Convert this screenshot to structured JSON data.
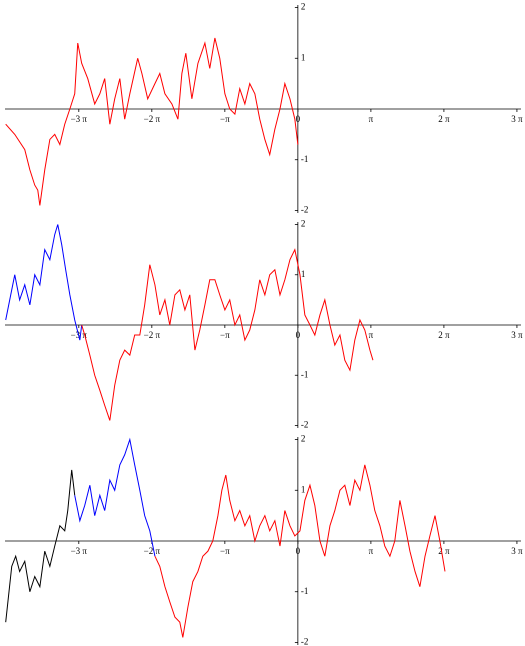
{
  "chart_data": [
    {
      "type": "line",
      "xlim": [
        -12.6,
        9.6
      ],
      "ylim": [
        -2.05,
        2.05
      ],
      "xticks": [
        {
          "value": -9.42478,
          "label": "−3 π"
        },
        {
          "value": -6.28319,
          "label": "−2 π"
        },
        {
          "value": -3.14159,
          "label": "−π"
        },
        0,
        {
          "value": 3.14159,
          "label": "π"
        },
        {
          "value": 6.28319,
          "label": "2 π"
        },
        {
          "value": 9.42478,
          "label": "3 π"
        }
      ],
      "yticks": [
        -2,
        -1,
        1,
        2
      ],
      "series": [
        {
          "color": "#ff0000",
          "x": [
            -12.57,
            -12.18,
            -11.75,
            -11.53,
            -11.32,
            -11.19,
            -11.1,
            -10.89,
            -10.67,
            -10.46,
            -10.24,
            -10.03,
            -9.81,
            -9.6,
            -9.47,
            -9.3,
            -9.04,
            -8.74,
            -8.52,
            -8.31,
            -8.09,
            -7.88,
            -7.66,
            -7.45,
            -7.23,
            -6.89,
            -6.71,
            -6.46,
            -6.15,
            -5.94,
            -5.72,
            -5.42,
            -5.16,
            -4.99,
            -4.82,
            -4.56,
            -4.3,
            -4.0,
            -3.79,
            -3.57,
            -3.36,
            -3.14,
            -2.93,
            -2.71,
            -2.5,
            -2.28,
            -2.07,
            -1.85,
            -1.64,
            -1.42,
            -1.21,
            -0.99,
            -0.77,
            -0.56,
            -0.34,
            -0.13,
            0
          ],
          "values": [
            -0.3,
            -0.5,
            -0.8,
            -1.2,
            -1.5,
            -1.6,
            -1.9,
            -1.2,
            -0.6,
            -0.5,
            -0.7,
            -0.3,
            0,
            0.3,
            1.3,
            0.9,
            0.6,
            0.1,
            0.3,
            0.6,
            -0.3,
            0.2,
            0.6,
            -0.2,
            0.3,
            1.0,
            0.7,
            0.2,
            0.5,
            0.7,
            0.3,
            0.1,
            -0.2,
            0.7,
            1.1,
            0.2,
            0.9,
            1.3,
            0.8,
            1.4,
            1.0,
            0.3,
            0.0,
            -0.1,
            0.4,
            0.1,
            0.5,
            0.3,
            -0.2,
            -0.6,
            -0.9,
            -0.4,
            0.0,
            0.5,
            0.2,
            -0.2,
            -0.7
          ]
        }
      ]
    },
    {
      "type": "line",
      "xlim": [
        -12.6,
        9.6
      ],
      "ylim": [
        -2.05,
        2.05
      ],
      "xticks": [
        {
          "value": -9.42478,
          "label": "−3 π"
        },
        {
          "value": -6.28319,
          "label": "−2 π"
        },
        {
          "value": -3.14159,
          "label": "−π"
        },
        0,
        {
          "value": 3.14159,
          "label": "π"
        },
        {
          "value": 6.28319,
          "label": "2 π"
        },
        {
          "value": 9.42478,
          "label": "3 π"
        }
      ],
      "yticks": [
        -2,
        -1,
        1,
        2
      ],
      "series": [
        {
          "color": "#0000ff",
          "x": [
            -12.57,
            -12.18,
            -11.97,
            -11.75,
            -11.53,
            -11.32,
            -11.1,
            -10.89,
            -10.67,
            -10.46,
            -10.33,
            -10.16,
            -9.99,
            -9.81,
            -9.6,
            -9.38,
            -9.3
          ],
          "values": [
            0.1,
            1.0,
            0.5,
            0.8,
            0.4,
            1.0,
            0.8,
            1.5,
            1.3,
            1.8,
            2.0,
            1.6,
            1.1,
            0.6,
            0.1,
            -0.3,
            0.0
          ]
        },
        {
          "color": "#ff0000",
          "x": [
            -9.3,
            -9.17,
            -8.95,
            -8.74,
            -8.52,
            -8.31,
            -8.09,
            -7.88,
            -7.66,
            -7.45,
            -7.23,
            -7.02,
            -6.8,
            -6.59,
            -6.37,
            -6.15,
            -5.94,
            -5.72,
            -5.51,
            -5.29,
            -5.08,
            -4.86,
            -4.65,
            -4.43,
            -4.22,
            -4.0,
            -3.79,
            -3.57,
            -3.36,
            -3.14,
            -2.93,
            -2.71,
            -2.5,
            -2.28,
            -2.07,
            -1.85,
            -1.64,
            -1.42,
            -1.21,
            -0.99,
            -0.77,
            -0.56,
            -0.34,
            -0.13,
            0.09,
            0.3,
            0.52,
            0.73,
            0.95,
            1.16,
            1.38,
            1.59,
            1.81,
            2.02,
            2.24,
            2.45,
            2.67,
            2.88,
            3.1,
            3.23
          ],
          "values": [
            0.0,
            -0.2,
            -0.6,
            -1.0,
            -1.3,
            -1.6,
            -1.9,
            -1.2,
            -0.7,
            -0.5,
            -0.6,
            -0.2,
            -0.2,
            0.4,
            1.2,
            0.8,
            0.2,
            0.5,
            0.0,
            0.6,
            0.7,
            0.3,
            0.6,
            -0.5,
            -0.1,
            0.4,
            0.9,
            0.9,
            0.6,
            0.3,
            0.5,
            0.0,
            0.2,
            -0.3,
            -0.1,
            0.3,
            0.9,
            0.6,
            1.0,
            1.1,
            0.6,
            0.9,
            1.3,
            1.5,
            1.0,
            0.2,
            0.0,
            -0.2,
            0.2,
            0.5,
            0.0,
            -0.4,
            -0.2,
            -0.7,
            -0.9,
            -0.3,
            0.1,
            -0.1,
            -0.5,
            -0.7
          ]
        }
      ]
    },
    {
      "type": "line",
      "xlim": [
        -12.6,
        9.6
      ],
      "ylim": [
        -2.05,
        2.05
      ],
      "xticks": [
        {
          "value": -9.42478,
          "label": "−3 π"
        },
        {
          "value": -6.28319,
          "label": "−2 π"
        },
        {
          "value": -3.14159,
          "label": "−π"
        },
        0,
        {
          "value": 3.14159,
          "label": "π"
        },
        {
          "value": 6.28319,
          "label": "2 π"
        },
        {
          "value": 9.42478,
          "label": "3 π"
        }
      ],
      "yticks": [
        -2,
        -1,
        1,
        2
      ],
      "series": [
        {
          "color": "#000000",
          "x": [
            -12.57,
            -12.31,
            -12.14,
            -11.97,
            -11.75,
            -11.53,
            -11.32,
            -11.1,
            -10.89,
            -10.67,
            -10.46,
            -10.24,
            -10.03,
            -9.9,
            -9.73,
            -9.6
          ],
          "values": [
            -1.6,
            -0.5,
            -0.3,
            -0.6,
            -0.4,
            -1.0,
            -0.7,
            -0.9,
            -0.2,
            -0.5,
            -0.1,
            0.3,
            0.2,
            0.6,
            1.4,
            0.9
          ]
        },
        {
          "color": "#0000ff",
          "x": [
            -9.6,
            -9.38,
            -9.17,
            -8.95,
            -8.74,
            -8.52,
            -8.31,
            -8.09,
            -7.88,
            -7.66,
            -7.45,
            -7.23,
            -7.02,
            -6.8,
            -6.59,
            -6.37,
            -6.15
          ],
          "values": [
            0.9,
            0.4,
            0.7,
            1.1,
            0.5,
            0.9,
            0.6,
            1.2,
            1.0,
            1.5,
            1.7,
            2.0,
            1.5,
            1.0,
            0.5,
            0.2,
            -0.3
          ]
        },
        {
          "color": "#ff0000",
          "x": [
            -6.15,
            -5.94,
            -5.72,
            -5.51,
            -5.29,
            -5.08,
            -4.95,
            -4.73,
            -4.52,
            -4.3,
            -4.09,
            -3.87,
            -3.66,
            -3.44,
            -3.27,
            -3.1,
            -2.93,
            -2.71,
            -2.5,
            -2.28,
            -2.07,
            -1.85,
            -1.64,
            -1.42,
            -1.21,
            -0.99,
            -0.77,
            -0.56,
            -0.34,
            -0.13,
            0.09,
            0.3,
            0.52,
            0.73,
            0.95,
            1.16,
            1.38,
            1.59,
            1.81,
            2.02,
            2.24,
            2.45,
            2.67,
            2.88,
            3.1,
            3.31,
            3.53,
            3.74,
            3.96,
            4.17,
            4.39,
            4.61,
            4.82,
            5.04,
            5.25,
            5.47,
            5.68,
            5.9,
            6.11,
            6.33
          ],
          "values": [
            -0.3,
            -0.5,
            -0.9,
            -1.2,
            -1.5,
            -1.6,
            -1.9,
            -1.3,
            -0.8,
            -0.6,
            -0.3,
            -0.2,
            0.0,
            0.5,
            1.0,
            1.3,
            0.8,
            0.4,
            0.6,
            0.3,
            0.5,
            0.0,
            0.3,
            0.5,
            0.2,
            0.4,
            -0.1,
            0.6,
            0.3,
            0.1,
            0.2,
            0.8,
            1.1,
            0.7,
            0.0,
            -0.3,
            0.3,
            0.6,
            1.0,
            1.1,
            0.7,
            1.2,
            1.0,
            1.5,
            1.1,
            0.6,
            0.3,
            -0.1,
            -0.3,
            0.0,
            0.8,
            0.3,
            -0.2,
            -0.6,
            -0.9,
            -0.3,
            0.1,
            0.5,
            0.0,
            -0.6
          ]
        }
      ]
    }
  ]
}
